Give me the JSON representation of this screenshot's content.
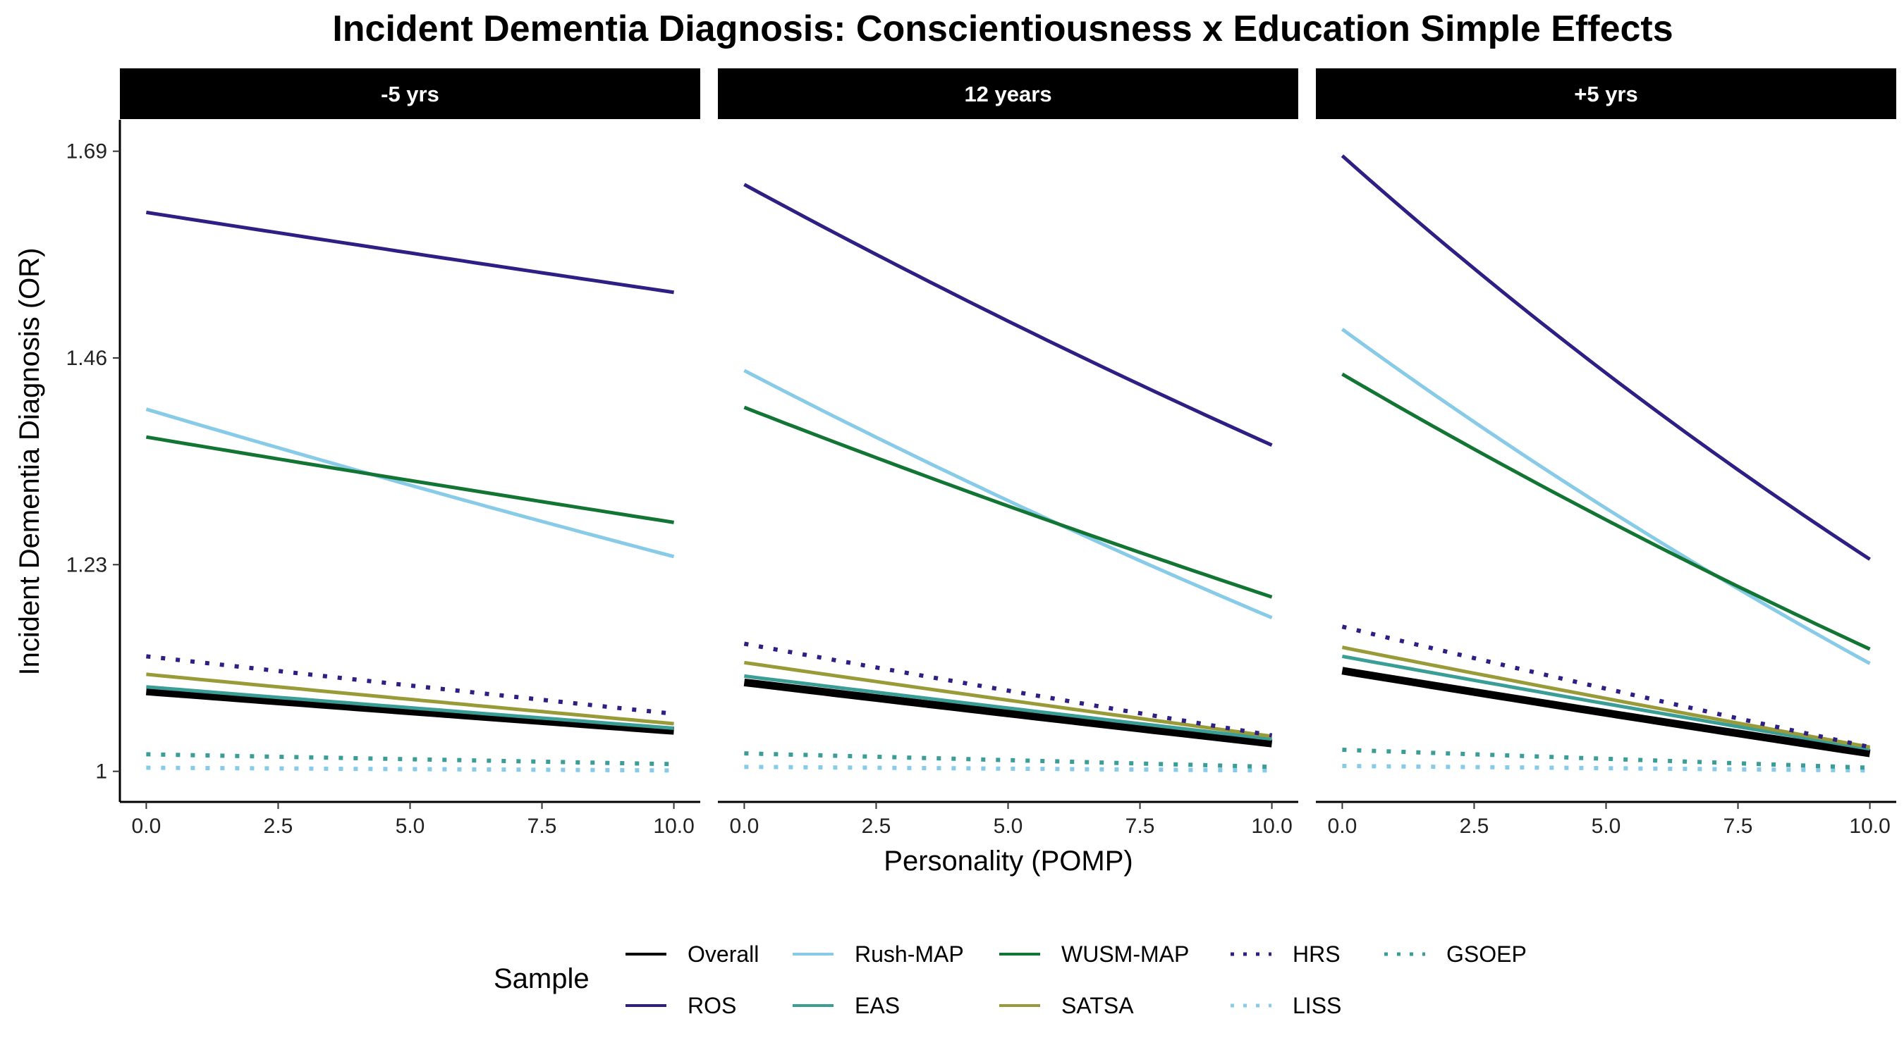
{
  "chart_data": {
    "type": "line",
    "title": "Incident Dementia Diagnosis: Conscientiousness x Education Simple Effects",
    "xlabel": "Personality (POMP)",
    "ylabel": "Incident Dementia Diagnosis (OR)",
    "xlim": [
      -0.5,
      10.5
    ],
    "ylim": [
      0.966,
      1.725
    ],
    "x_ticks": [
      "0.0",
      "2.5",
      "5.0",
      "7.5",
      "10.0"
    ],
    "y_ticks": [
      "1",
      "1.23",
      "1.46",
      "1.69"
    ],
    "legend": {
      "title": "Sample",
      "placement": "bottom",
      "entries": [
        "Overall",
        "ROS",
        "Rush-MAP",
        "EAS",
        "WUSM-MAP",
        "SATSA",
        "HRS",
        "LISS",
        "GSOEP"
      ]
    },
    "series_styles": [
      {
        "name": "Overall",
        "color": "#000000",
        "dash": "solid"
      },
      {
        "name": "ROS",
        "color": "#2d1f83",
        "dash": "solid"
      },
      {
        "name": "Rush-MAP",
        "color": "#88cbe8",
        "dash": "solid"
      },
      {
        "name": "EAS",
        "color": "#3a9e96",
        "dash": "solid"
      },
      {
        "name": "WUSM-MAP",
        "color": "#127533",
        "dash": "solid"
      },
      {
        "name": "SATSA",
        "color": "#999a38",
        "dash": "solid"
      },
      {
        "name": "HRS",
        "color": "#2d1f83",
        "dash": "dotted"
      },
      {
        "name": "LISS",
        "color": "#88cbe8",
        "dash": "dotted"
      },
      {
        "name": "GSOEP",
        "color": "#3a9e96",
        "dash": "dotted"
      }
    ],
    "panels": [
      {
        "label": "-5 yrs",
        "series": [
          {
            "name": "Overall",
            "x": [
              0,
              10
            ],
            "y": [
              1.089,
              1.045
            ]
          },
          {
            "name": "ROS",
            "x": [
              0,
              10
            ],
            "y": [
              1.622,
              1.533
            ]
          },
          {
            "name": "Rush-MAP",
            "x": [
              0,
              10
            ],
            "y": [
              1.403,
              1.239
            ]
          },
          {
            "name": "EAS",
            "x": [
              0,
              10
            ],
            "y": [
              1.094,
              1.048
            ]
          },
          {
            "name": "WUSM-MAP",
            "x": [
              0,
              10
            ],
            "y": [
              1.372,
              1.277
            ]
          },
          {
            "name": "SATSA",
            "x": [
              0,
              10
            ],
            "y": [
              1.108,
              1.053
            ]
          },
          {
            "name": "HRS",
            "x": [
              0,
              10
            ],
            "y": [
              1.128,
              1.064
            ]
          },
          {
            "name": "LISS",
            "x": [
              0,
              10
            ],
            "y": [
              1.004,
              1.001
            ]
          },
          {
            "name": "GSOEP",
            "x": [
              0,
              10
            ],
            "y": [
              1.019,
              1.008
            ]
          }
        ]
      },
      {
        "label": "12 years",
        "series": [
          {
            "name": "Overall",
            "x": [
              0,
              10
            ],
            "y": [
              1.099,
              1.031
            ]
          },
          {
            "name": "ROS",
            "x": [
              0,
              10
            ],
            "y": [
              1.653,
              1.363
            ]
          },
          {
            "name": "Rush-MAP",
            "x": [
              0,
              10
            ],
            "y": [
              1.446,
              1.171
            ]
          },
          {
            "name": "EAS",
            "x": [
              0,
              10
            ],
            "y": [
              1.106,
              1.036
            ]
          },
          {
            "name": "WUSM-MAP",
            "x": [
              0,
              10
            ],
            "y": [
              1.405,
              1.194
            ]
          },
          {
            "name": "SATSA",
            "x": [
              0,
              10
            ],
            "y": [
              1.121,
              1.039
            ]
          },
          {
            "name": "HRS",
            "x": [
              0,
              10
            ],
            "y": [
              1.142,
              1.04
            ]
          },
          {
            "name": "LISS",
            "x": [
              0,
              10
            ],
            "y": [
              1.005,
              1.001
            ]
          },
          {
            "name": "GSOEP",
            "x": [
              0,
              10
            ],
            "y": [
              1.02,
              1.005
            ]
          }
        ]
      },
      {
        "label": "+5 yrs",
        "series": [
          {
            "name": "Overall",
            "x": [
              0,
              10
            ],
            "y": [
              1.112,
              1.02
            ]
          },
          {
            "name": "ROS",
            "x": [
              0,
              10
            ],
            "y": [
              1.685,
              1.236
            ]
          },
          {
            "name": "Rush-MAP",
            "x": [
              0,
              10
            ],
            "y": [
              1.492,
              1.12
            ]
          },
          {
            "name": "EAS",
            "x": [
              0,
              10
            ],
            "y": [
              1.128,
              1.025
            ]
          },
          {
            "name": "WUSM-MAP",
            "x": [
              0,
              10
            ],
            "y": [
              1.442,
              1.136
            ]
          },
          {
            "name": "SATSA",
            "x": [
              0,
              10
            ],
            "y": [
              1.138,
              1.027
            ]
          },
          {
            "name": "HRS",
            "x": [
              0,
              10
            ],
            "y": [
              1.161,
              1.027
            ]
          },
          {
            "name": "LISS",
            "x": [
              0,
              10
            ],
            "y": [
              1.006,
              1.001
            ]
          },
          {
            "name": "GSOEP",
            "x": [
              0,
              10
            ],
            "y": [
              1.024,
              1.004
            ]
          }
        ]
      }
    ]
  }
}
